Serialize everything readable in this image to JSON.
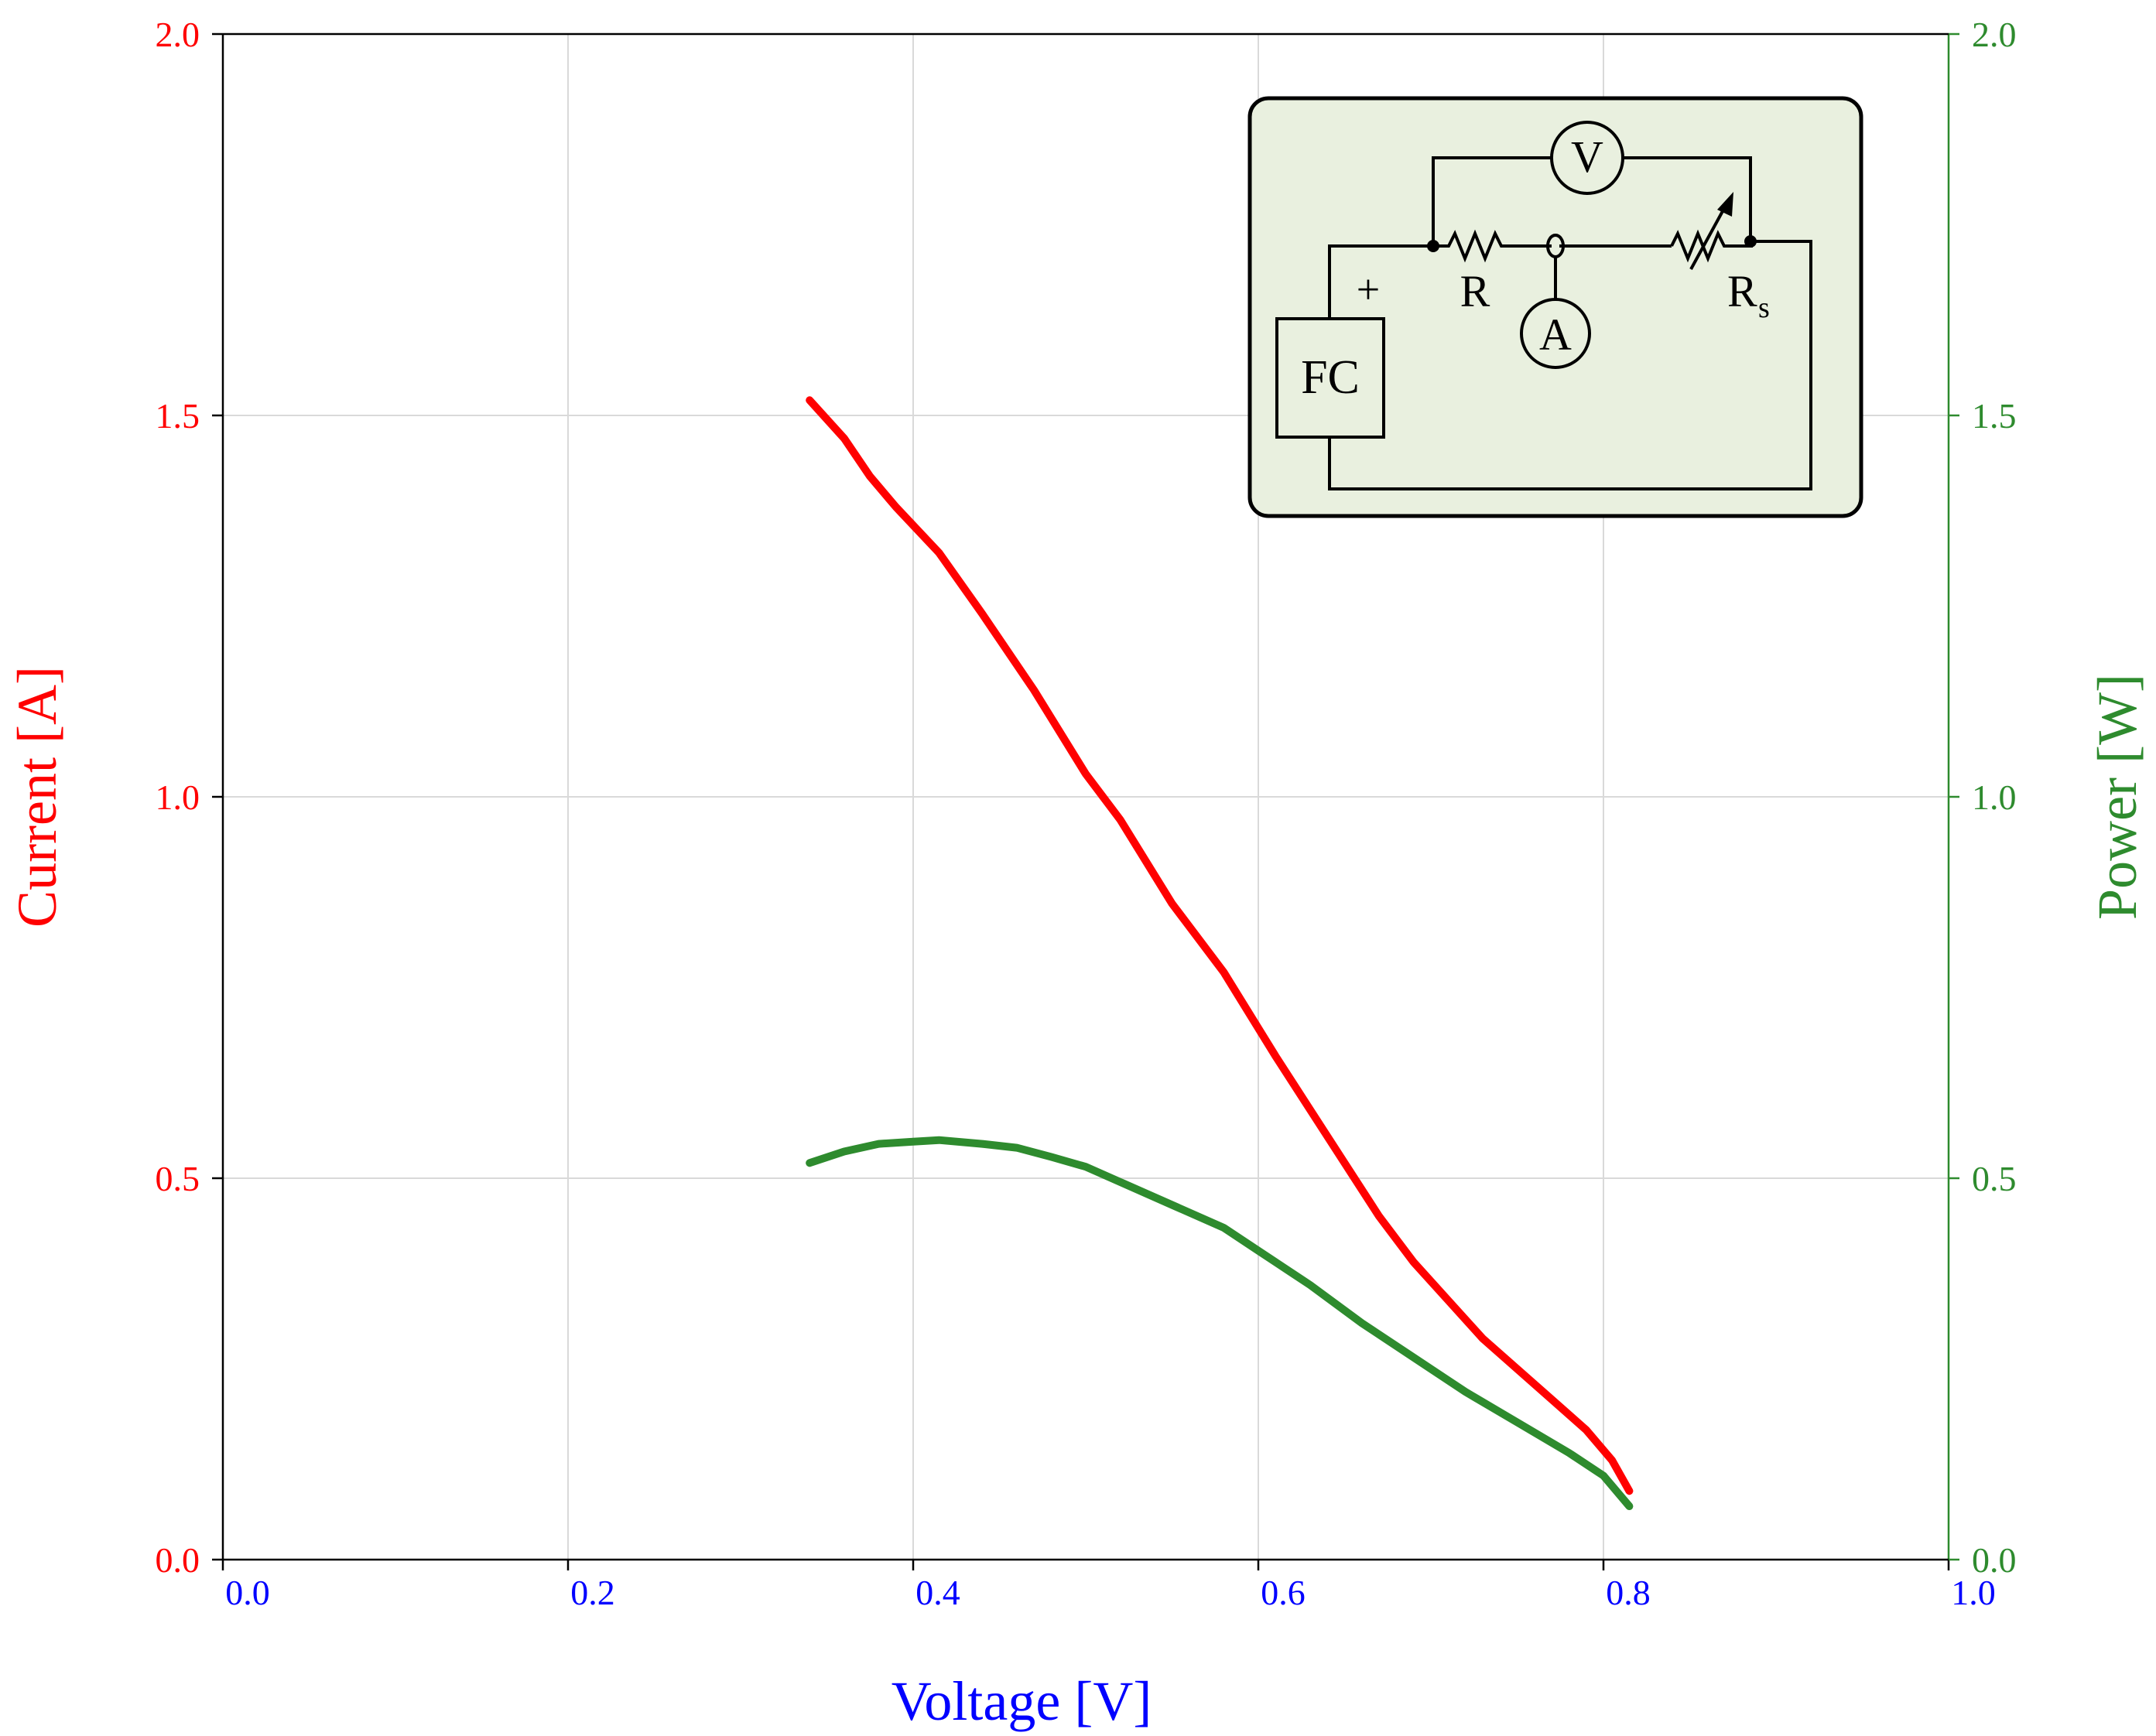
{
  "colors": {
    "current": "#ff0000",
    "power": "#2e8b2e",
    "voltage_axis": "#0000ff",
    "grid": "#d9d9d9",
    "inset_bg": "#e9f0df"
  },
  "chart_data": {
    "type": "line",
    "xlabel": "Voltage [V]",
    "ylabel_left": "Current [A]",
    "ylabel_right": "Power [W]",
    "xlim": [
      0,
      1
    ],
    "ylim_left": [
      0,
      2
    ],
    "ylim_right": [
      0,
      2
    ],
    "grid": true,
    "x_ticks": [
      "0.0",
      "0.2",
      "0.4",
      "0.6",
      "0.8",
      "1.0"
    ],
    "y_left_ticks": [
      "0.0",
      "0.5",
      "1.0",
      "1.5",
      "2.0"
    ],
    "y_right_ticks": [
      "0.0",
      "0.5",
      "1.0",
      "1.5",
      "2.0"
    ],
    "series": [
      {
        "key": "current",
        "axis": "left",
        "x": [
          0.34,
          0.36,
          0.375,
          0.39,
          0.415,
          0.44,
          0.47,
          0.5,
          0.52,
          0.55,
          0.58,
          0.61,
          0.63,
          0.65,
          0.67,
          0.69,
          0.71,
          0.73,
          0.75,
          0.77,
          0.79,
          0.805,
          0.815
        ],
        "y": [
          1.52,
          1.47,
          1.42,
          1.38,
          1.32,
          1.24,
          1.14,
          1.03,
          0.97,
          0.86,
          0.77,
          0.66,
          0.59,
          0.52,
          0.45,
          0.39,
          0.34,
          0.29,
          0.25,
          0.21,
          0.17,
          0.13,
          0.09
        ]
      },
      {
        "key": "power",
        "axis": "right",
        "x": [
          0.34,
          0.36,
          0.38,
          0.4,
          0.415,
          0.44,
          0.46,
          0.48,
          0.5,
          0.52,
          0.55,
          0.58,
          0.6,
          0.63,
          0.66,
          0.69,
          0.72,
          0.75,
          0.78,
          0.8,
          0.815
        ],
        "y": [
          0.52,
          0.535,
          0.545,
          0.548,
          0.55,
          0.545,
          0.54,
          0.528,
          0.515,
          0.495,
          0.465,
          0.435,
          0.405,
          0.36,
          0.31,
          0.265,
          0.22,
          0.18,
          0.14,
          0.11,
          0.07
        ]
      }
    ]
  },
  "inset": {
    "labels": {
      "voltmeter": "V",
      "ammeter": "A",
      "fuel_cell": "FC",
      "resistor": "R",
      "rheostat_main": "R",
      "rheostat_sub": "s",
      "plus": "+"
    }
  }
}
